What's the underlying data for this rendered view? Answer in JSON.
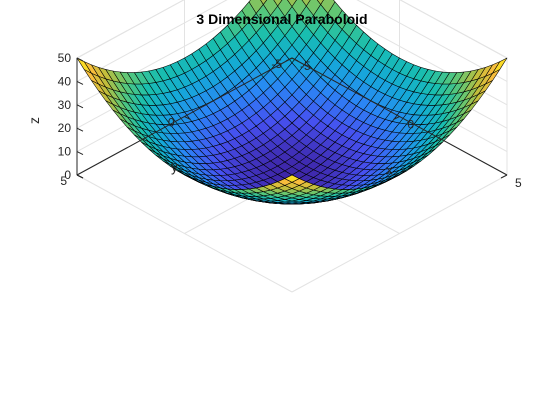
{
  "chart_data": {
    "type": "surface",
    "title": "3 Dimensional Paraboloid",
    "equation": "z = x^2 + y^2",
    "x_range": [
      -5,
      5
    ],
    "y_range": [
      -5,
      5
    ],
    "grid_steps": 30,
    "xlabel": "x",
    "ylabel": "y",
    "zlabel": "z",
    "xlim": [
      -5,
      5
    ],
    "ylim": [
      -5,
      5
    ],
    "zlim": [
      0,
      50
    ],
    "x_ticks": [
      -5,
      0,
      5
    ],
    "y_ticks": [
      -5,
      0,
      5
    ],
    "z_ticks": [
      0,
      10,
      20,
      30,
      40,
      50
    ],
    "grid": true,
    "colormap": "parula",
    "edge_color": "#000000",
    "view": "isometric"
  }
}
